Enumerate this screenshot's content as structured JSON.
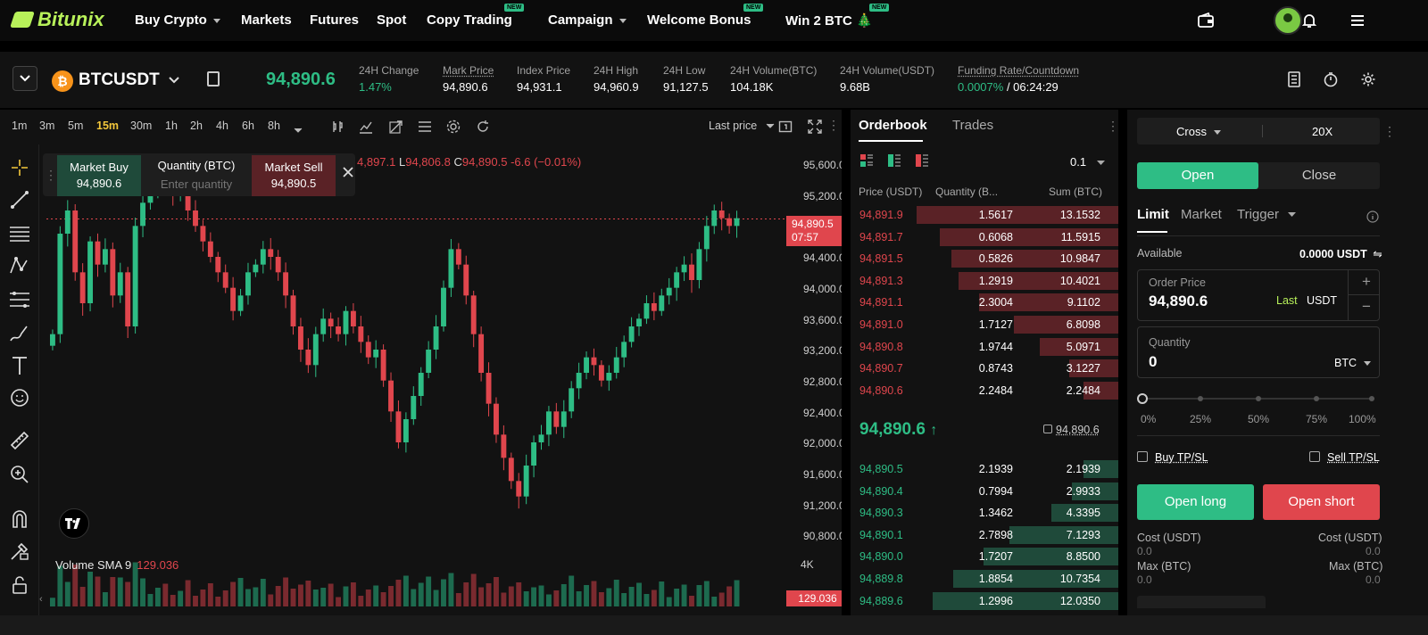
{
  "nav": {
    "logo": "Bitunix",
    "items": [
      {
        "label": "Buy Crypto",
        "caret": true,
        "new": false
      },
      {
        "label": "Markets",
        "caret": false,
        "new": false
      },
      {
        "label": "Futures",
        "caret": false,
        "new": false
      },
      {
        "label": "Spot",
        "caret": false,
        "new": false
      },
      {
        "label": "Copy Trading",
        "caret": false,
        "new": true
      },
      {
        "label": "Campaign",
        "caret": true,
        "new": false
      },
      {
        "label": "Welcome Bonus",
        "caret": false,
        "new": true
      },
      {
        "label": "Win 2 BTC 🎄",
        "caret": false,
        "new": true
      }
    ],
    "new_badge": "NEW",
    "icons": [
      "wallet-icon",
      "avatar",
      "bell-icon",
      "menu-icon"
    ]
  },
  "ticker": {
    "pair": "BTCUSDT",
    "coin_symbol": "₿",
    "last_price": "94,890.6",
    "stats": [
      {
        "label": "24H Change",
        "value": "1.47%",
        "color": "#2ebd85"
      },
      {
        "label": "Mark Price",
        "value": "94,890.6",
        "underline": true
      },
      {
        "label": "Index Price",
        "value": "94,931.1"
      },
      {
        "label": "24H High",
        "value": "94,960.9"
      },
      {
        "label": "24H Low",
        "value": "91,127.5"
      },
      {
        "label": "24H Volume(BTC)",
        "value": "104.18K"
      },
      {
        "label": "24H Volume(USDT)",
        "value": "9.68B"
      }
    ],
    "funding": {
      "label": "Funding Rate/Countdown",
      "rate": "0.0007%",
      "countdown": "/ 06:24:29"
    }
  },
  "chart_toolbar": {
    "intervals": [
      "1m",
      "3m",
      "5m",
      "15m",
      "30m",
      "1h",
      "2h",
      "4h",
      "6h",
      "8h"
    ],
    "active_interval": "15m",
    "price_source": "Last price"
  },
  "quick_trade": {
    "buy_label": "Market Buy",
    "buy_price": "94,890.6",
    "qty_label": "Quantity (BTC)",
    "qty_placeholder": "Enter quantity",
    "sell_label": "Market Sell",
    "sell_price": "94,890.5"
  },
  "ohlc_line": {
    "prefix_h": "4,897.1",
    "l_label": "L",
    "l": "94,806.8",
    "c_label": "C",
    "c": "94,890.5",
    "chg": "-6.6 (−0.01%)"
  },
  "chart_data": {
    "type": "candlestick",
    "yticks": [
      "95,600.0",
      "95,200.0",
      "94,800.0",
      "94,400.0",
      "94,000.0",
      "93,600.0",
      "93,200.0",
      "92,800.0",
      "92,400.0",
      "92,000.0",
      "91,600.0",
      "91,200.0",
      "90,800.0"
    ],
    "ylim": [
      90800,
      95600
    ],
    "current_price_tag": "94,890.5",
    "countdown_tag": "07:57",
    "volume_label": "Volume SMA 9",
    "volume_value": "129.036",
    "volume_tick": "4K",
    "volume_tag": "129.036",
    "closes": [
      93400,
      94700,
      95000,
      94200,
      93800,
      94600,
      94300,
      94500,
      93900,
      94200,
      93500,
      94800,
      95100,
      95300,
      95500,
      95400,
      95200,
      95300,
      95000,
      94800,
      94600,
      94400,
      94200,
      94000,
      93700,
      93900,
      94200,
      94300,
      94500,
      94400,
      94200,
      93900,
      93500,
      93200,
      93000,
      93400,
      93600,
      93500,
      93400,
      93700,
      93500,
      93300,
      93100,
      93200,
      92800,
      92400,
      92000,
      92300,
      92600,
      92900,
      93200,
      93500,
      94000,
      94500,
      94300,
      93900,
      93400,
      92900,
      92500,
      92100,
      91800,
      91500,
      91300,
      91700,
      92000,
      92100,
      92400,
      92200,
      92400,
      92700,
      92900,
      93100,
      93000,
      92800,
      92900,
      93100,
      93300,
      93500,
      93600,
      93800,
      93700,
      93900,
      94000,
      94200,
      94300,
      94100,
      94500,
      94800,
      95000,
      94900,
      94800,
      94900
    ]
  },
  "orderbook": {
    "tabs": [
      "Orderbook",
      "Trades"
    ],
    "active_tab": "Orderbook",
    "precision": "0.1",
    "headers": [
      "Price (USDT)",
      "Quantity (B...",
      "Sum (BTC)"
    ],
    "asks": [
      {
        "price": "94,891.9",
        "qty": "1.5617",
        "sum": "13.1532",
        "depth": 0.87
      },
      {
        "price": "94,891.7",
        "qty": "0.6068",
        "sum": "11.5915",
        "depth": 0.77
      },
      {
        "price": "94,891.5",
        "qty": "0.5826",
        "sum": "10.9847",
        "depth": 0.72
      },
      {
        "price": "94,891.3",
        "qty": "1.2919",
        "sum": "10.4021",
        "depth": 0.69
      },
      {
        "price": "94,891.1",
        "qty": "2.3004",
        "sum": "9.1102",
        "depth": 0.6
      },
      {
        "price": "94,891.0",
        "qty": "1.7127",
        "sum": "6.8098",
        "depth": 0.45
      },
      {
        "price": "94,890.8",
        "qty": "1.9744",
        "sum": "5.0971",
        "depth": 0.34
      },
      {
        "price": "94,890.7",
        "qty": "0.8743",
        "sum": "3.1227",
        "depth": 0.21
      },
      {
        "price": "94,890.6",
        "qty": "2.2484",
        "sum": "2.2484",
        "depth": 0.15
      }
    ],
    "mid_price": "94,890.6",
    "mid_arrow": "↑",
    "mark_price": "94,890.6",
    "bids": [
      {
        "price": "94,890.5",
        "qty": "2.1939",
        "sum": "2.1939",
        "depth": 0.15
      },
      {
        "price": "94,890.4",
        "qty": "0.7994",
        "sum": "2.9933",
        "depth": 0.2
      },
      {
        "price": "94,890.3",
        "qty": "1.3462",
        "sum": "4.3395",
        "depth": 0.29
      },
      {
        "price": "94,890.1",
        "qty": "2.7898",
        "sum": "7.1293",
        "depth": 0.47
      },
      {
        "price": "94,890.0",
        "qty": "1.7207",
        "sum": "8.8500",
        "depth": 0.58
      },
      {
        "price": "94,889.8",
        "qty": "1.8854",
        "sum": "10.7354",
        "depth": 0.71
      },
      {
        "price": "94,889.6",
        "qty": "1.2996",
        "sum": "12.0350",
        "depth": 0.8
      }
    ]
  },
  "order": {
    "margin_mode": "Cross",
    "leverage": "20X",
    "open_label": "Open",
    "close_label": "Close",
    "order_types": [
      "Limit",
      "Market",
      "Trigger"
    ],
    "available_label": "Available",
    "available_value": "0.0000 USDT",
    "price_label": "Order Price",
    "price_value": "94,890.6",
    "last_label": "Last",
    "price_unit": "USDT",
    "qty_label": "Quantity",
    "qty_value": "0",
    "qty_unit": "BTC",
    "slider_marks": [
      "0%",
      "25%",
      "50%",
      "75%",
      "100%"
    ],
    "slider_value": 0,
    "buy_tpsl": "Buy TP/SL",
    "sell_tpsl": "Sell TP/SL",
    "open_long": "Open long",
    "open_short": "Open short",
    "cost_label": "Cost (USDT)",
    "cost_long": "0.0",
    "cost_short": "0.0",
    "max_label": "Max (BTC)",
    "max_long": "0.0",
    "max_short": "0.0"
  },
  "colors": {
    "up": "#2ebd85",
    "down": "#e0464d",
    "brand": "#b8f15a"
  }
}
